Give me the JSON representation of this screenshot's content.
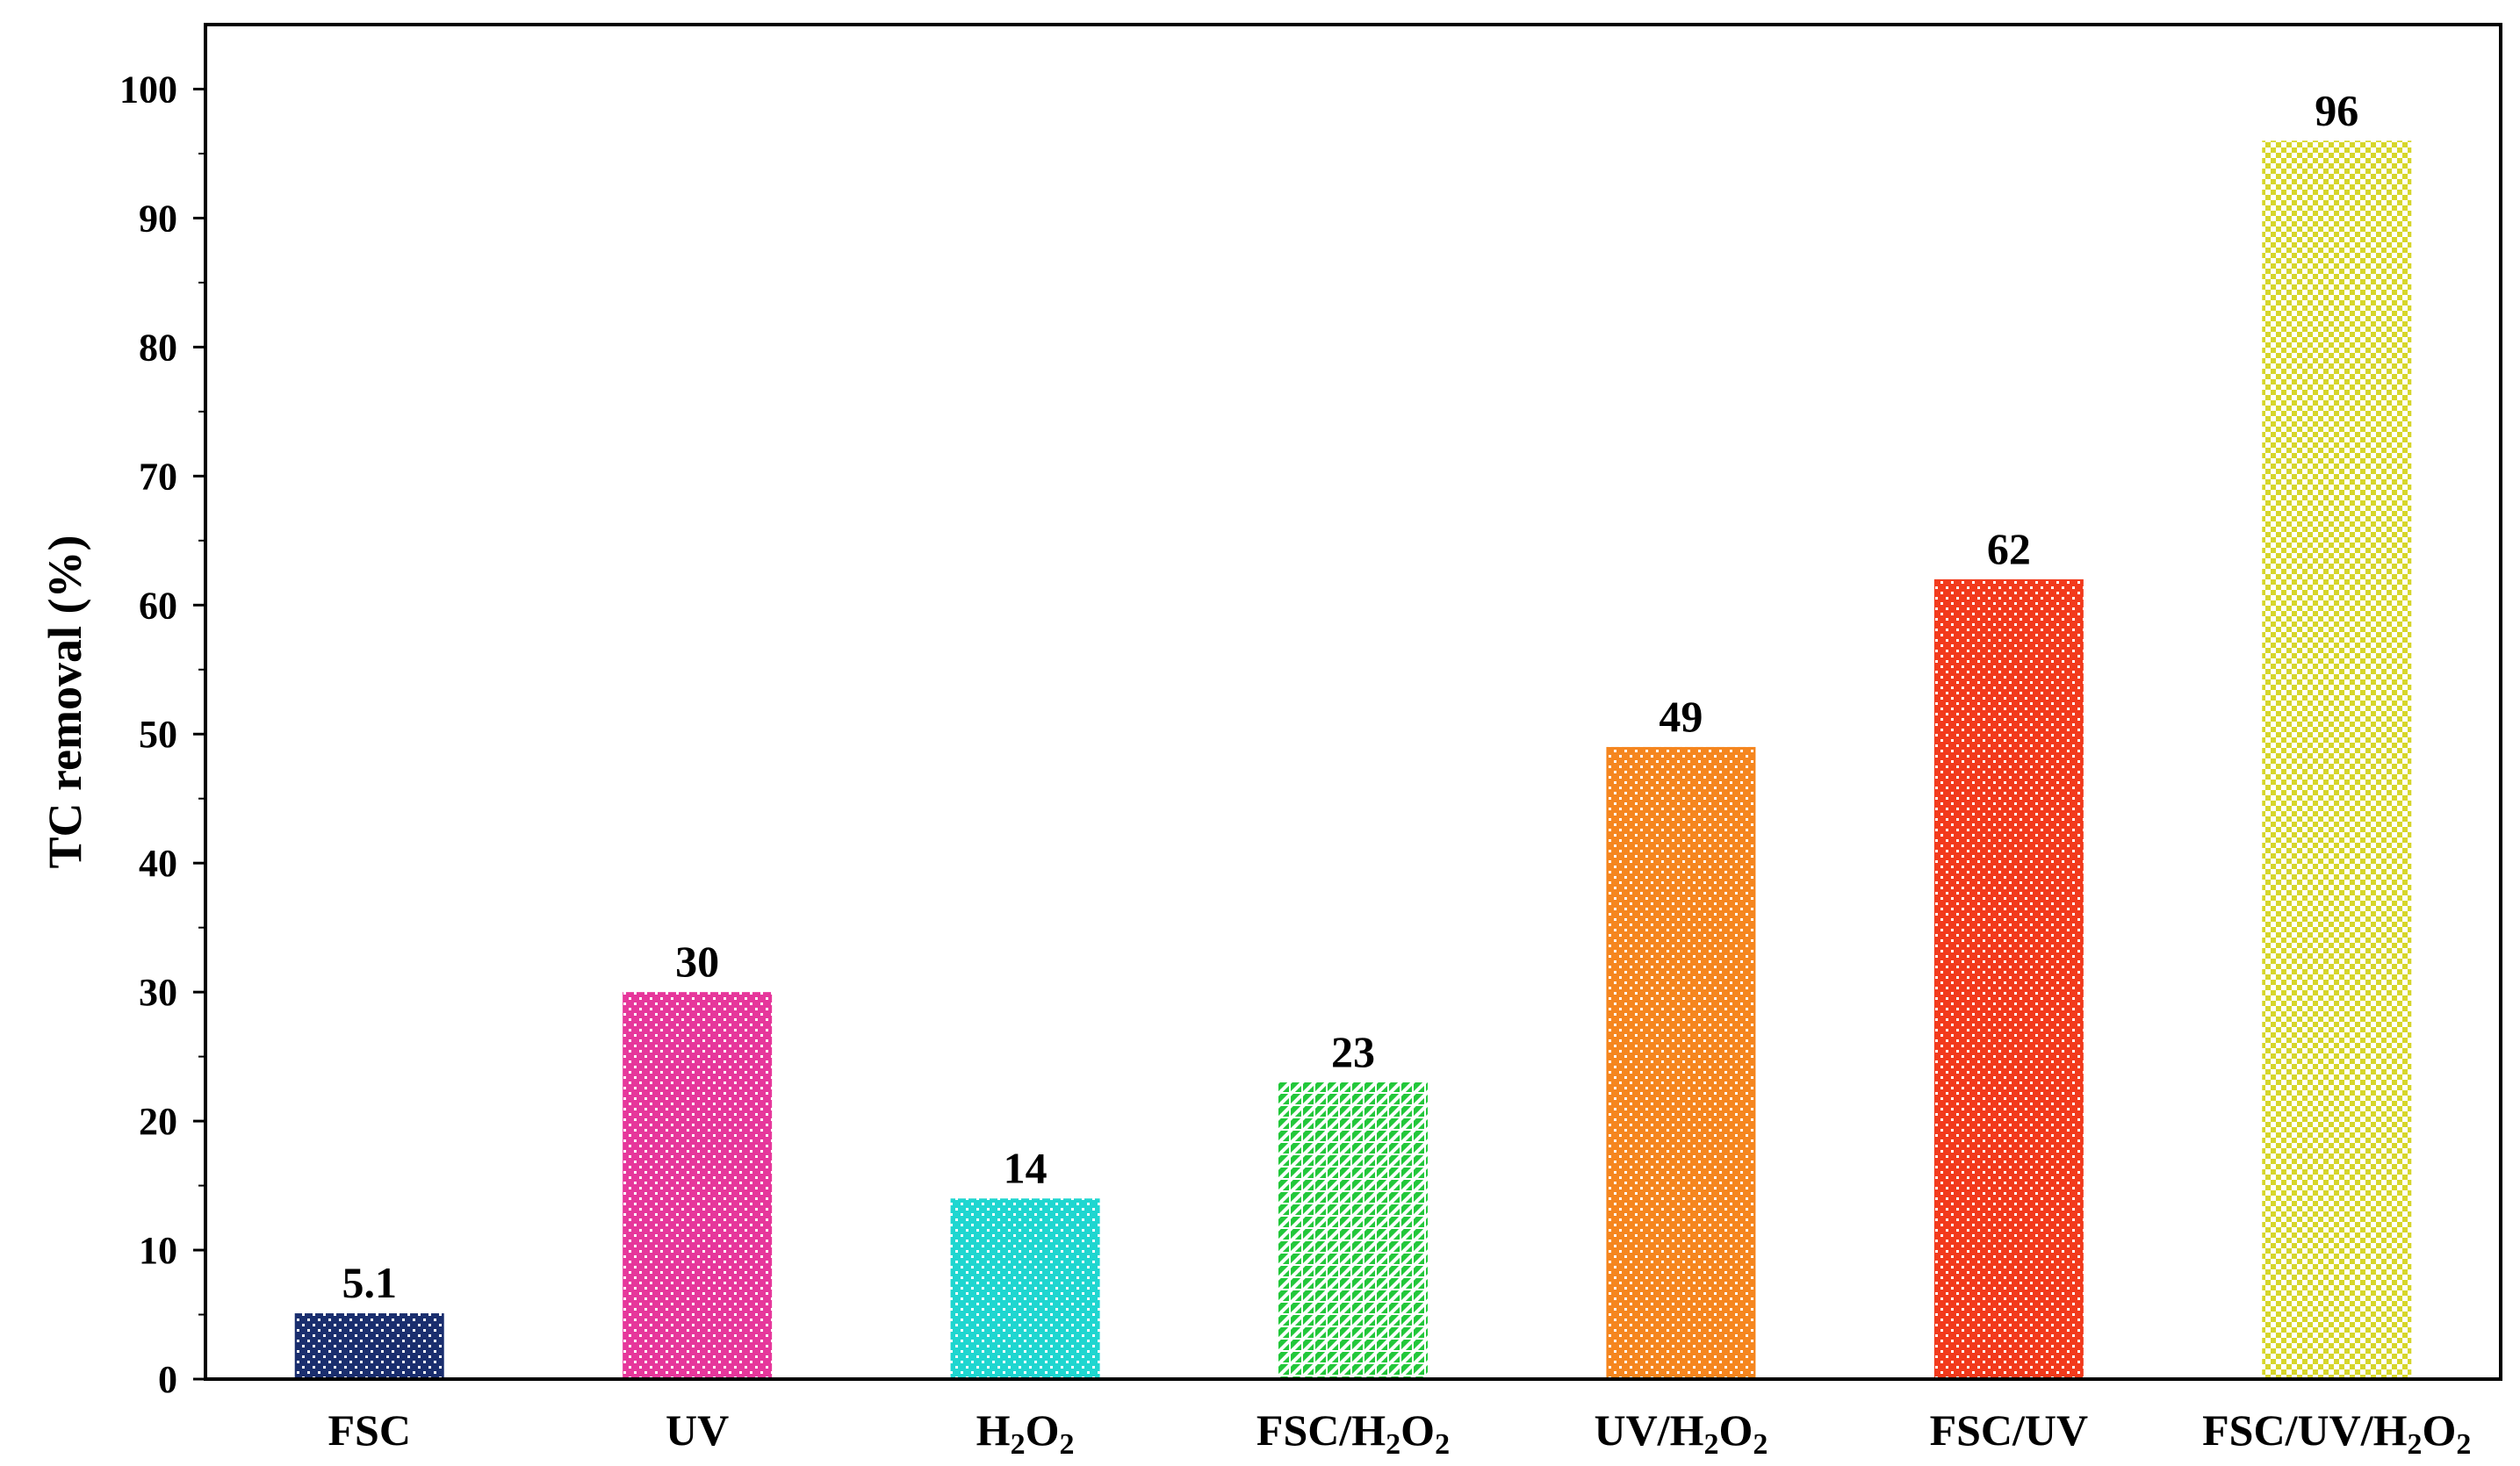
{
  "chart_data": {
    "type": "bar",
    "title": "",
    "xlabel": "",
    "ylabel": "TC removal (%)",
    "ylim": [
      0,
      105
    ],
    "yticks": [
      0,
      10,
      20,
      30,
      40,
      50,
      60,
      70,
      80,
      90,
      100
    ],
    "grid": false,
    "legend": "none",
    "categories": [
      {
        "label": "FSC",
        "parts": [
          {
            "t": "FSC"
          }
        ]
      },
      {
        "label": "UV",
        "parts": [
          {
            "t": "UV"
          }
        ]
      },
      {
        "label": "H2O2",
        "parts": [
          {
            "t": "H"
          },
          {
            "t": "2",
            "sub": true
          },
          {
            "t": "O"
          },
          {
            "t": "2",
            "sub": true
          }
        ]
      },
      {
        "label": "FSC/H2O2",
        "parts": [
          {
            "t": "FSC/H"
          },
          {
            "t": "2",
            "sub": true
          },
          {
            "t": "O"
          },
          {
            "t": "2",
            "sub": true
          }
        ]
      },
      {
        "label": "UV/H2O2",
        "parts": [
          {
            "t": "UV/H"
          },
          {
            "t": "2",
            "sub": true
          },
          {
            "t": "O"
          },
          {
            "t": "2",
            "sub": true
          }
        ]
      },
      {
        "label": "FSC/UV",
        "parts": [
          {
            "t": "FSC/UV"
          }
        ]
      },
      {
        "label": "FSC/UV/H2O2",
        "parts": [
          {
            "t": "FSC/UV/H"
          },
          {
            "t": "2",
            "sub": true
          },
          {
            "t": "O"
          },
          {
            "t": "2",
            "sub": true
          }
        ]
      }
    ],
    "values": [
      5.1,
      30,
      14,
      23,
      49,
      62,
      96
    ],
    "value_labels": [
      "5.1",
      "30",
      "14",
      "23",
      "49",
      "62",
      "96"
    ],
    "colors": [
      "#1a2e6e",
      "#e6379b",
      "#1fd6d0",
      "#22c73a",
      "#f5861f",
      "#f23a1c",
      "#d6d62a"
    ],
    "patterns": [
      "dots",
      "dots",
      "dots",
      "diagonal",
      "dots",
      "dots",
      "checker"
    ]
  }
}
